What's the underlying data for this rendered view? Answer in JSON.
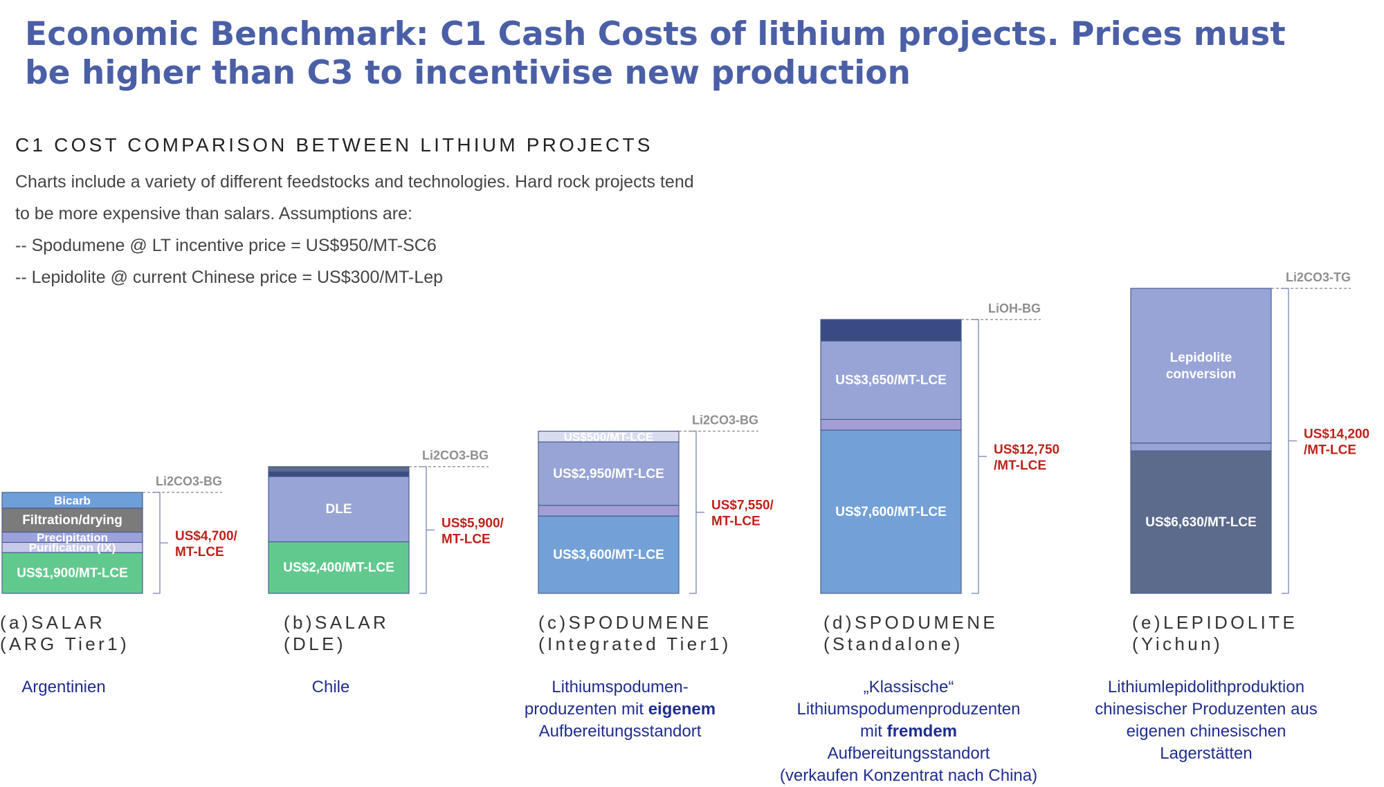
{
  "header": {
    "title": "Economic Benchmark: C1 Cash Costs of lithium projects. Prices must be higher than C3 to incentivise new production",
    "subtitle": "C1 COST COMPARISON BETWEEN LITHIUM PROJECTS",
    "intro_lines": [
      "Charts include a variety of different feedstocks and technologies. Hard rock projects tend",
      "to be more expensive than salars. Assumptions are:",
      "-- Spodumene @ LT incentive price = US$950/MT-SC6",
      "-- Lepidolite @ current Chinese price = US$300/MT-Lep"
    ]
  },
  "colors": {
    "bicarb": "#6e9fd8",
    "filtration": "#7b7b7b",
    "precipitation": "#9ba2dc",
    "purification": "#c5c9ea",
    "base_green": "#62c98e",
    "dle": "#98a4d6",
    "dark_navy": "#3a4a82",
    "periwinkle": "#98a4d6",
    "lavender": "#a39fd6",
    "light_lavender": "#d9dcf1",
    "mid_blue": "#73a1d7",
    "slate": "#5c6b8c",
    "total_label": "#c0201a",
    "note_text": "#1f2d8f"
  },
  "chart_data": {
    "type": "bar",
    "stacked": true,
    "unit": "US$/MT-LCE",
    "projects": [
      {
        "category": [
          "(a)SALAR",
          "(ARG Tier1)"
        ],
        "note": "Argentinien",
        "product": "Li2CO3-BG",
        "total": 4700,
        "total_label": [
          "US$4,700/",
          "MT-LCE"
        ],
        "segments": [
          {
            "label": "US$1,900/MT-LCE",
            "value": 1900,
            "color": "base_green"
          },
          {
            "label": "Purification (IX)",
            "value": 470,
            "color": "purification"
          },
          {
            "label": "Precipitation",
            "value": 480,
            "color": "precipitation"
          },
          {
            "label": "Filtration/drying",
            "value": 1120,
            "color": "filtration"
          },
          {
            "label": "Bicarb",
            "value": 730,
            "color": "bicarb"
          }
        ]
      },
      {
        "category": [
          "(b)SALAR",
          "(DLE)"
        ],
        "note": "Chile",
        "product": "Li2CO3-BG",
        "total": 5900,
        "total_label": [
          "US$5,900/",
          "MT-LCE"
        ],
        "segments": [
          {
            "label": "US$2,400/MT-LCE",
            "value": 2400,
            "color": "base_green"
          },
          {
            "label": "DLE",
            "value": 3040,
            "color": "dle"
          },
          {
            "label": "",
            "value": 230,
            "color": "dark_navy"
          },
          {
            "label": "",
            "value": 230,
            "color": "slate"
          }
        ]
      },
      {
        "category": [
          "(c)SPODUMENE",
          "(Integrated Tier1)"
        ],
        "note_html": "Lithiumspodumen-<br>produzenten mit <b>eigenem</b><br>Aufbereitungsstandort",
        "product": "Li2CO3-BG",
        "total": 7550,
        "total_label": [
          "US$7,550/",
          "MT-LCE"
        ],
        "segments": [
          {
            "label": "US$3,600/MT-LCE",
            "value": 3600,
            "color": "mid_blue"
          },
          {
            "label": "",
            "value": 500,
            "color": "lavender"
          },
          {
            "label": "US$2,950/MT-LCE",
            "value": 2950,
            "color": "periwinkle"
          },
          {
            "label": "US$500/MT-LCE",
            "value": 500,
            "color": "light_lavender"
          }
        ]
      },
      {
        "category": [
          "(d)SPODUMENE",
          "(Standalone)"
        ],
        "note_html": "„Klassische“<br>Lithiumspodumenproduzenten<br>mit <b>fremdem</b><br>Aufbereitungsstandort<br>(verkaufen Konzentrat nach China)",
        "product": "LiOH-BG",
        "total": 12750,
        "total_label": [
          "US$12,750",
          "/MT-LCE"
        ],
        "segments": [
          {
            "label": "US$7,600/MT-LCE",
            "value": 7600,
            "color": "mid_blue"
          },
          {
            "label": "",
            "value": 500,
            "color": "lavender"
          },
          {
            "label": "US$3,650/MT-LCE",
            "value": 3650,
            "color": "periwinkle"
          },
          {
            "label": "",
            "value": 1000,
            "color": "dark_navy"
          }
        ]
      },
      {
        "category": [
          "(e)LEPIDOLITE",
          "(Yichun)"
        ],
        "note_html": "Lithiumlepidolithproduktion<br>chinesischer Produzenten aus<br>eigenen chinesischen<br>Lagerstätten",
        "product": "Li2CO3-TG",
        "total": 14200,
        "total_label": [
          "US$14,200",
          "/MT-LCE"
        ],
        "segments": [
          {
            "label": "US$6,630/MT-LCE",
            "value": 6630,
            "color": "slate"
          },
          {
            "label": "",
            "value": 370,
            "color": "periwinkle"
          },
          {
            "label": "Lepidolite conversion",
            "value": 7200,
            "color": "periwinkle"
          }
        ]
      }
    ]
  }
}
